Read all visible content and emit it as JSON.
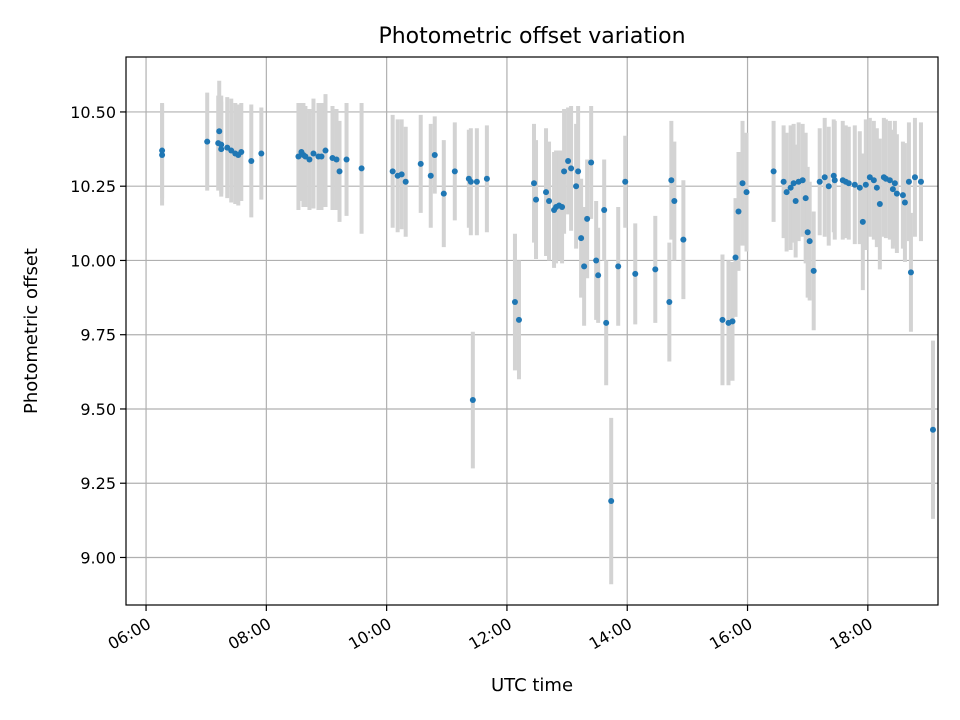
{
  "chart_data": {
    "type": "scatter",
    "title": "Photometric offset variation",
    "xlabel": "UTC time",
    "ylabel": "Photometric offset",
    "xlim": [
      "05:40",
      "19:10"
    ],
    "ylim": [
      8.84,
      10.685
    ],
    "x_ticks": [
      "06:00",
      "08:00",
      "10:00",
      "12:00",
      "14:00",
      "16:00",
      "18:00"
    ],
    "y_ticks": [
      "9.00",
      "9.25",
      "9.50",
      "9.75",
      "10.00",
      "10.25",
      "10.50"
    ],
    "grid": true,
    "legend": "none",
    "colors": {
      "points": "#1f77b4",
      "error_bars": "#d3d3d3",
      "grid": "#b0b0b0"
    },
    "series": [
      {
        "x": [
          "06:16",
          "06:16",
          "07:01",
          "07:12",
          "07:13",
          "07:15",
          "07:15",
          "07:21",
          "07:25",
          "07:29",
          "07:32",
          "07:35",
          "07:45",
          "07:55",
          "08:32",
          "08:35",
          "08:37",
          "08:39",
          "08:43",
          "08:47",
          "08:52",
          "08:55",
          "08:59",
          "09:06",
          "09:10",
          "09:13",
          "09:20",
          "09:35",
          "10:06",
          "10:11",
          "10:15",
          "10:19",
          "10:34",
          "10:44",
          "10:48",
          "10:57",
          "11:08",
          "11:22",
          "11:24",
          "11:26",
          "11:30",
          "11:40",
          "12:08",
          "12:12",
          "12:27",
          "12:29",
          "12:39",
          "12:42",
          "12:47",
          "12:49",
          "12:52",
          "12:55",
          "12:57",
          "13:01",
          "13:04",
          "13:09",
          "13:11",
          "13:14",
          "13:17",
          "13:20",
          "13:24",
          "13:29",
          "13:31",
          "13:37",
          "13:39",
          "13:44",
          "13:51",
          "13:58",
          "14:08",
          "14:28",
          "14:42",
          "14:44",
          "14:47",
          "14:56",
          "15:35",
          "15:41",
          "15:45",
          "15:48",
          "15:51",
          "15:55",
          "15:59",
          "16:26",
          "16:36",
          "16:39",
          "16:43",
          "16:46",
          "16:48",
          "16:51",
          "16:55",
          "16:58",
          "17:00",
          "17:02",
          "17:06",
          "17:12",
          "17:17",
          "17:21",
          "17:26",
          "17:27",
          "17:35",
          "17:38",
          "17:41",
          "17:47",
          "17:52",
          "17:55",
          "17:58",
          "18:02",
          "18:06",
          "18:09",
          "18:12",
          "18:16",
          "18:18",
          "18:22",
          "18:25",
          "18:27",
          "18:29",
          "18:35",
          "18:37",
          "18:41",
          "18:43",
          "18:47",
          "18:53",
          "19:05"
        ],
        "y": [
          10.355,
          10.37,
          10.4,
          10.395,
          10.435,
          10.375,
          10.39,
          10.38,
          10.37,
          10.36,
          10.355,
          10.365,
          10.335,
          10.36,
          10.35,
          10.365,
          10.355,
          10.35,
          10.34,
          10.36,
          10.35,
          10.35,
          10.37,
          10.345,
          10.34,
          10.3,
          10.34,
          10.31,
          10.3,
          10.285,
          10.29,
          10.265,
          10.325,
          10.285,
          10.355,
          10.225,
          10.3,
          10.275,
          10.265,
          9.53,
          10.265,
          10.275,
          9.86,
          9.8,
          10.26,
          10.205,
          10.23,
          10.2,
          10.17,
          10.18,
          10.185,
          10.18,
          10.3,
          10.335,
          10.31,
          10.25,
          10.3,
          10.075,
          9.98,
          10.14,
          10.33,
          10.0,
          9.95,
          10.17,
          9.79,
          9.19,
          9.98,
          10.265,
          9.955,
          9.97,
          9.86,
          10.27,
          10.2,
          10.07,
          9.8,
          9.79,
          9.795,
          10.01,
          10.165,
          10.26,
          10.23,
          10.3,
          10.265,
          10.23,
          10.245,
          10.26,
          10.2,
          10.265,
          10.27,
          10.21,
          10.095,
          10.065,
          9.965,
          10.265,
          10.28,
          10.25,
          10.285,
          10.27,
          10.27,
          10.265,
          10.26,
          10.255,
          10.245,
          10.13,
          10.255,
          10.28,
          10.27,
          10.245,
          10.19,
          10.28,
          10.275,
          10.27,
          10.24,
          10.26,
          10.225,
          10.22,
          10.195,
          10.265,
          9.96,
          10.28,
          10.265,
          9.43
        ],
        "err": [
          0.17,
          0.16,
          0.165,
          0.16,
          0.17,
          0.16,
          0.165,
          0.17,
          0.175,
          0.17,
          0.17,
          0.165,
          0.19,
          0.155,
          0.18,
          0.165,
          0.175,
          0.17,
          0.17,
          0.185,
          0.18,
          0.18,
          0.19,
          0.175,
          0.17,
          0.17,
          0.19,
          0.22,
          0.19,
          0.19,
          0.185,
          0.185,
          0.165,
          0.175,
          0.13,
          0.18,
          0.165,
          0.165,
          0.18,
          0.23,
          0.18,
          0.18,
          0.23,
          0.2,
          0.2,
          0.2,
          0.215,
          0.2,
          0.195,
          0.19,
          0.185,
          0.19,
          0.21,
          0.18,
          0.21,
          0.21,
          0.22,
          0.2,
          0.2,
          0.2,
          0.19,
          0.2,
          0.16,
          0.17,
          0.21,
          0.28,
          0.2,
          0.155,
          0.17,
          0.18,
          0.2,
          0.2,
          0.2,
          0.2,
          0.22,
          0.21,
          0.2,
          0.2,
          0.2,
          0.21,
          0.2,
          0.17,
          0.19,
          0.2,
          0.21,
          0.2,
          0.19,
          0.2,
          0.19,
          0.22,
          0.22,
          0.2,
          0.2,
          0.18,
          0.2,
          0.2,
          0.19,
          0.2,
          0.2,
          0.19,
          0.19,
          0.2,
          0.19,
          0.23,
          0.22,
          0.2,
          0.2,
          0.2,
          0.22,
          0.2,
          0.2,
          0.2,
          0.2,
          0.21,
          0.2,
          0.18,
          0.2,
          0.2,
          0.2,
          0.2,
          0.2,
          0.3
        ]
      }
    ]
  }
}
